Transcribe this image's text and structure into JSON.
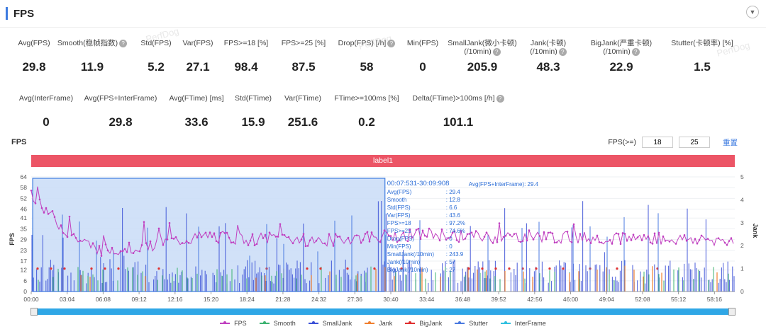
{
  "header": {
    "title": "FPS",
    "collapse_icon": "chevron-down-icon"
  },
  "metrics_row1": [
    {
      "label": "Avg(FPS)",
      "value": "29.8",
      "help": false
    },
    {
      "label": "Smooth(稳帧指数)",
      "value": "11.9",
      "help": true
    },
    {
      "label": "Std(FPS)",
      "value": "5.2",
      "help": false
    },
    {
      "label": "Var(FPS)",
      "value": "27.1",
      "help": false
    },
    {
      "label": "FPS>=18 [%]",
      "value": "98.4",
      "help": false
    },
    {
      "label": "FPS>=25 [%]",
      "value": "87.5",
      "help": false
    },
    {
      "label": "Drop(FPS) [/h]",
      "value": "58",
      "help": true
    },
    {
      "label": "Min(FPS)",
      "value": "0",
      "help": false
    },
    {
      "label": "SmallJank(微小卡顿)",
      "label2": "(/10min)",
      "value": "205.9",
      "help": true
    },
    {
      "label": "Jank(卡顿)",
      "label2": "(/10min)",
      "value": "48.3",
      "help": true
    },
    {
      "label": "BigJank(严重卡顿)",
      "label2": "(/10min)",
      "value": "22.9",
      "help": true
    },
    {
      "label": "Stutter(卡顿率) [%]",
      "value": "1.5",
      "help": false
    }
  ],
  "metrics_row2": [
    {
      "label": "Avg(InterFrame)",
      "value": "0",
      "help": false
    },
    {
      "label": "Avg(FPS+InterFrame)",
      "value": "29.8",
      "help": false
    },
    {
      "label": "Avg(FTime) [ms]",
      "value": "33.6",
      "help": false
    },
    {
      "label": "Std(FTime)",
      "value": "15.9",
      "help": false
    },
    {
      "label": "Var(FTime)",
      "value": "251.6",
      "help": false
    },
    {
      "label": "FTime>=100ms [%]",
      "value": "0.2",
      "help": false
    },
    {
      "label": "Delta(FTime)>100ms [/h]",
      "value": "101.1",
      "help": true
    }
  ],
  "chart_header": {
    "title": "FPS",
    "threshold_label": "FPS(>=)",
    "threshold1": "18",
    "threshold2": "25",
    "reset_label": "重置"
  },
  "label_bar": "label1",
  "watermark": "PerfDog",
  "tooltip": {
    "range": "00:07:531-30:09:908",
    "right_label": "Avg(FPS+InterFrame): 29.4",
    "rows": [
      [
        "Avg(FPS)",
        ": 29.4"
      ],
      [
        "Smooth",
        ": 12.8"
      ],
      [
        "Std(FPS)",
        ": 6.6"
      ],
      [
        "Var(FPS)",
        ": 43.6"
      ],
      [
        "FPS>=18",
        ": 97.2%"
      ],
      [
        "FPS>=25",
        ": 74.6%"
      ],
      [
        "Drop(FPS)",
        ": 0"
      ],
      [
        "Min(FPS)",
        ": 0"
      ],
      [
        "SmallJank(/10min)",
        ": 243.9"
      ],
      [
        "Jank(/10min)",
        ": 57"
      ],
      [
        "BigJank(/10min)",
        ": 27"
      ]
    ]
  },
  "colors": {
    "FPS": "#c040c0",
    "Smooth": "#3cb371",
    "SmallJank": "#3a4fd6",
    "Jank": "#f08030",
    "BigJank": "#e03030",
    "Stutter": "#4a7ae0",
    "InterFrame": "#30c0e0",
    "selection": "#c9dcf7",
    "label_bar": "#ec5566",
    "accent": "#3d7be0"
  },
  "chart_data": {
    "type": "line",
    "ylabel": "FPS",
    "y2label": "Jank",
    "y_ticks": [
      64,
      58,
      52,
      46,
      41,
      35,
      29,
      23,
      17,
      12,
      6,
      0
    ],
    "y2_ticks": [
      5,
      4,
      3,
      2,
      1,
      0
    ],
    "x_ticks": [
      "00:00",
      "03:04",
      "06:08",
      "09:12",
      "12:16",
      "15:20",
      "18:24",
      "21:28",
      "24:32",
      "27:36",
      "30:40",
      "33:44",
      "36:48",
      "39:52",
      "42:56",
      "46:00",
      "49:04",
      "52:08",
      "55:12",
      "58:16"
    ],
    "series_names": [
      "FPS",
      "Smooth",
      "SmallJank",
      "Jank",
      "BigJank",
      "Stutter",
      "InterFrame"
    ],
    "fps_trend": [
      {
        "t": "00:00",
        "fps": 55
      },
      {
        "t": "01:00",
        "fps": 48
      },
      {
        "t": "02:00",
        "fps": 40
      },
      {
        "t": "03:04",
        "fps": 33
      },
      {
        "t": "04:30",
        "fps": 27
      },
      {
        "t": "06:08",
        "fps": 23
      },
      {
        "t": "09:12",
        "fps": 25
      },
      {
        "t": "12:16",
        "fps": 28
      },
      {
        "t": "15:20",
        "fps": 31
      },
      {
        "t": "18:24",
        "fps": 29
      },
      {
        "t": "21:28",
        "fps": 30
      },
      {
        "t": "24:32",
        "fps": 28
      },
      {
        "t": "27:36",
        "fps": 30
      },
      {
        "t": "30:40",
        "fps": 31
      },
      {
        "t": "33:44",
        "fps": 32
      },
      {
        "t": "36:48",
        "fps": 31
      },
      {
        "t": "39:52",
        "fps": 30
      },
      {
        "t": "42:56",
        "fps": 31
      },
      {
        "t": "46:00",
        "fps": 30
      },
      {
        "t": "49:04",
        "fps": 30
      },
      {
        "t": "52:08",
        "fps": 30
      },
      {
        "t": "55:12",
        "fps": 29
      },
      {
        "t": "58:16",
        "fps": 29
      },
      {
        "t": "60:00",
        "fps": 28
      }
    ]
  }
}
